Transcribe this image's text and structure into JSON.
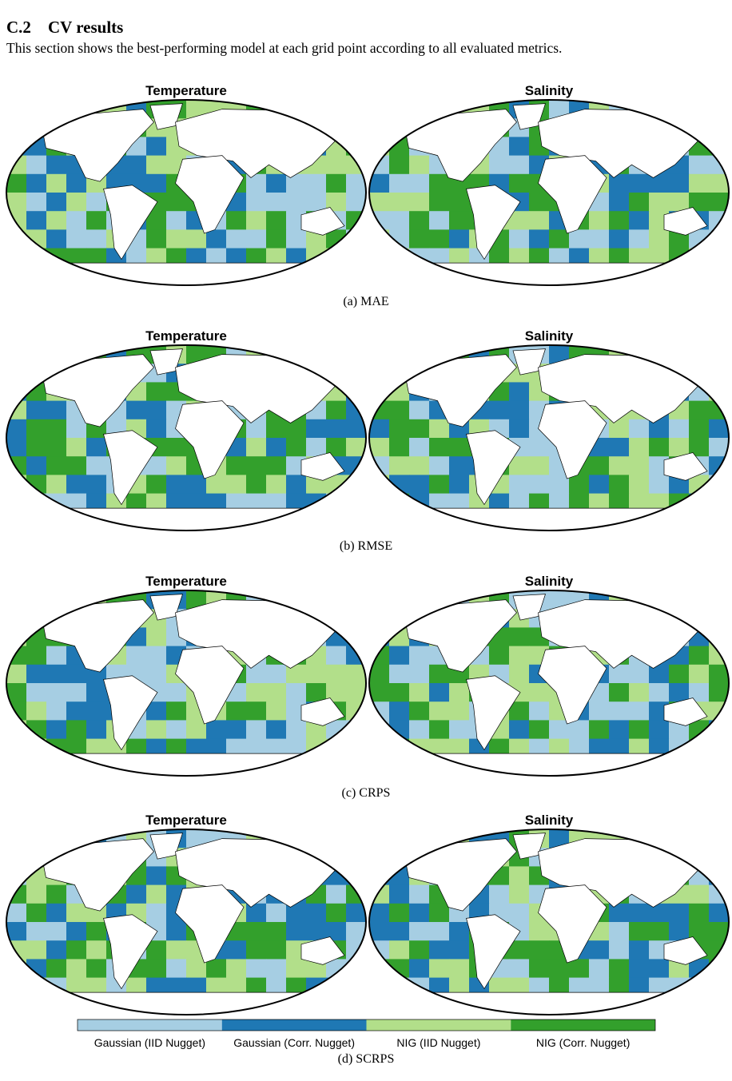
{
  "heading": {
    "number": "C.2",
    "title": "CV results"
  },
  "paragraph": "This section shows the best-performing model at each grid point according to all evaluated metrics.",
  "panels": [
    {
      "maps": [
        "Temperature",
        "Salinity"
      ],
      "caption": "(a) MAE"
    },
    {
      "maps": [
        "Temperature",
        "Salinity"
      ],
      "caption": "(b) RMSE"
    },
    {
      "maps": [
        "Temperature",
        "Salinity"
      ],
      "caption": "(c) CRPS"
    },
    {
      "maps": [
        "Temperature",
        "Salinity"
      ],
      "caption": "(d) SCRPS"
    }
  ],
  "legend": [
    {
      "label": "Gaussian (IID Nugget)",
      "color": "#a6cee3"
    },
    {
      "label": "Gaussian (Corr. Nugget)",
      "color": "#1f78b4"
    },
    {
      "label": "NIG (IID Nugget)",
      "color": "#b2df8a"
    },
    {
      "label": "NIG (Corr. Nugget)",
      "color": "#33a02c"
    }
  ]
}
